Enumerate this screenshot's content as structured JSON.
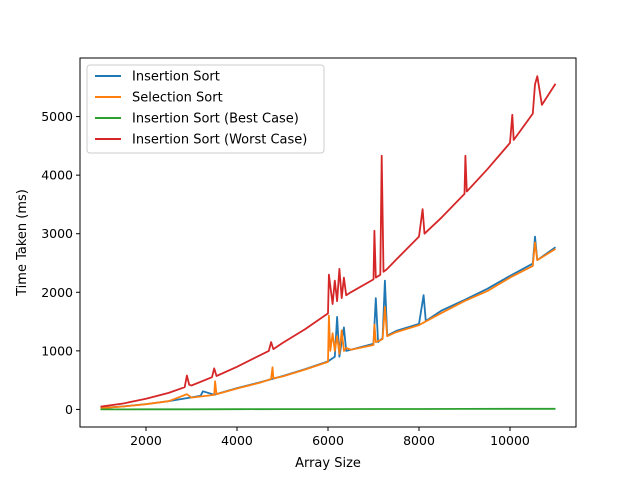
{
  "chart_data": {
    "type": "line",
    "title": "",
    "xlabel": "Array Size",
    "ylabel": "Time Taken (ms)",
    "xlim": [
      550,
      11450
    ],
    "ylim": [
      -300,
      6000
    ],
    "xticks": [
      2000,
      4000,
      6000,
      8000,
      10000
    ],
    "yticks": [
      0,
      1000,
      2000,
      3000,
      4000,
      5000
    ],
    "grid": false,
    "legend_position": "upper-left",
    "series": [
      {
        "name": "Insertion Sort",
        "color": "#1f77b4",
        "x": [
          1000,
          1500,
          2000,
          2500,
          3000,
          3200,
          3250,
          3500,
          4000,
          4500,
          5000,
          5500,
          6000,
          6150,
          6200,
          6250,
          6350,
          6400,
          6500,
          7000,
          7050,
          7100,
          7200,
          7250,
          7300,
          7500,
          8000,
          8100,
          8150,
          8500,
          9000,
          9500,
          10000,
          10500,
          10550,
          10600,
          11000
        ],
        "y": [
          23,
          51,
          91,
          142,
          205,
          233,
          310,
          251,
          364,
          461,
          569,
          689,
          820,
          900,
          1580,
          900,
          1400,
          1000,
          1020,
          1120,
          1900,
          1150,
          1220,
          2200,
          1260,
          1340,
          1460,
          1950,
          1510,
          1690,
          1870,
          2060,
          2280,
          2490,
          2950,
          2550,
          2770
        ]
      },
      {
        "name": "Selection Sort",
        "color": "#ff7f0e",
        "x": [
          1000,
          1500,
          2000,
          2500,
          2900,
          3000,
          3500,
          3520,
          3550,
          4000,
          4500,
          4750,
          4780,
          4800,
          5000,
          5500,
          6000,
          6020,
          6050,
          6100,
          6150,
          6200,
          6250,
          6300,
          6350,
          6400,
          6500,
          7000,
          7020,
          7050,
          7200,
          7250,
          7300,
          7500,
          8000,
          8500,
          9000,
          9500,
          10000,
          10500,
          10550,
          10600,
          11000
        ],
        "y": [
          22,
          50,
          90,
          141,
          260,
          202,
          248,
          480,
          260,
          358,
          455,
          520,
          720,
          530,
          562,
          682,
          812,
          1600,
          1000,
          1300,
          1000,
          1250,
          950,
          1350,
          1000,
          1050,
          1020,
          1100,
          1450,
          1150,
          1200,
          1750,
          1250,
          1320,
          1440,
          1650,
          1850,
          2020,
          2250,
          2450,
          2850,
          2550,
          2740
        ]
      },
      {
        "name": "Insertion Sort (Best Case)",
        "color": "#2ca02c",
        "x": [
          1000,
          2000,
          3000,
          4000,
          5000,
          6000,
          7000,
          8000,
          9000,
          10000,
          11000
        ],
        "y": [
          1,
          2,
          3,
          4,
          5,
          6,
          7,
          8,
          9,
          10,
          11
        ]
      },
      {
        "name": "Insertion Sort (Worst Case)",
        "color": "#d62728",
        "x": [
          1000,
          1500,
          2000,
          2500,
          2850,
          2900,
          2950,
          3000,
          3450,
          3500,
          3550,
          4000,
          4700,
          4750,
          4800,
          5000,
          5500,
          6000,
          6020,
          6100,
          6150,
          6200,
          6250,
          6300,
          6350,
          6400,
          6500,
          7000,
          7020,
          7050,
          7150,
          7180,
          7220,
          7300,
          7500,
          8000,
          8080,
          8120,
          8500,
          9000,
          9020,
          9050,
          9500,
          10000,
          10050,
          10080,
          10500,
          10550,
          10600,
          10700,
          11000
        ],
        "y": [
          46,
          102,
          181,
          283,
          380,
          580,
          420,
          408,
          550,
          700,
          570,
          727,
          1000,
          1150,
          1030,
          1134,
          1372,
          1640,
          2300,
          1800,
          2200,
          1850,
          2400,
          1900,
          2250,
          1950,
          2000,
          2220,
          3050,
          2250,
          2300,
          4330,
          2350,
          2400,
          2560,
          2950,
          3420,
          3000,
          3280,
          3680,
          4330,
          3720,
          4100,
          4550,
          5030,
          4600,
          5050,
          5550,
          5690,
          5200,
          5560
        ]
      }
    ]
  }
}
